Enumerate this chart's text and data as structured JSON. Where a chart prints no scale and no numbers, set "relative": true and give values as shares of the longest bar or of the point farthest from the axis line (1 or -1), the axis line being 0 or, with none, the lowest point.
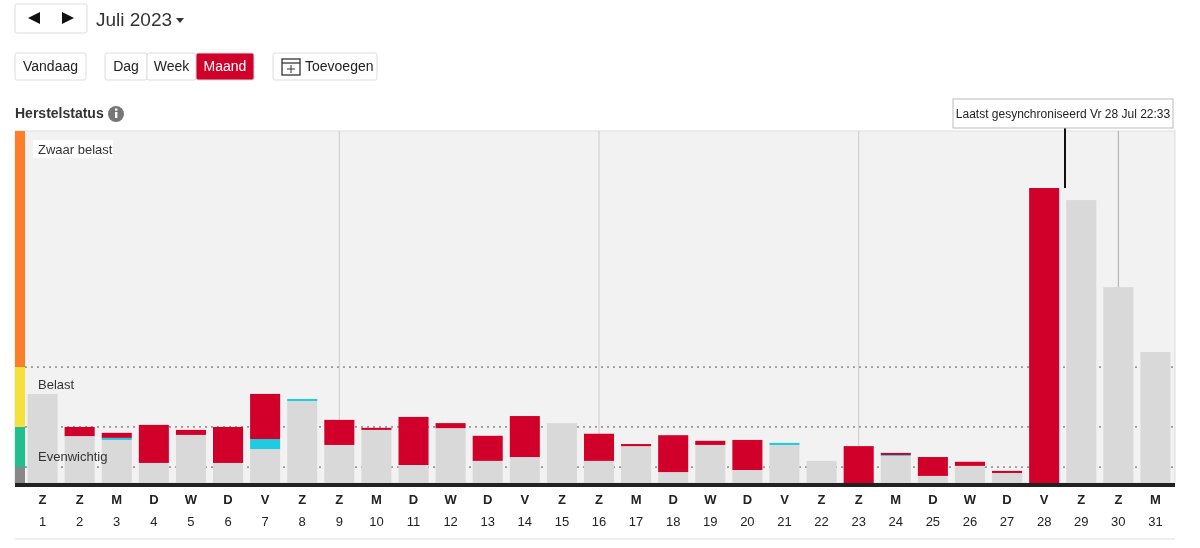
{
  "chart_data": {
    "type": "bar",
    "title": "Herstelstatus",
    "subtitle": "Juli 2023",
    "relative": true,
    "stacked": true,
    "categories": [
      "Z\n1",
      "Z\n2",
      "M\n3",
      "D\n4",
      "W\n5",
      "D\n6",
      "V\n7",
      "Z\n8",
      "Z\n9",
      "M\n10",
      "D\n11",
      "W\n12",
      "D\n13",
      "V\n14",
      "Z\n15",
      "Z\n16",
      "M\n17",
      "D\n18",
      "W\n19",
      "D\n20",
      "V\n21",
      "Z\n22",
      "Z\n23",
      "M\n24",
      "D\n25",
      "W\n26",
      "D\n27",
      "V\n28",
      "Z\n29",
      "Z\n30",
      "M\n31"
    ],
    "series": [
      {
        "color": "#d9d9d9",
        "values": [
          0.302,
          0.159,
          0.146,
          0.068,
          0.163,
          0.068,
          0.115,
          0.278,
          0.129,
          0.18,
          0.061,
          0.186,
          0.075,
          0.088,
          0.203,
          0.075,
          0.125,
          0.037,
          0.129,
          0.044,
          0.129,
          0.075,
          0,
          0.092,
          0.024,
          0.058,
          0.034,
          0,
          0.959,
          0.664,
          0.444
        ]
      },
      {
        "color": "#1ecbe1",
        "values": [
          0,
          0,
          0.007,
          0,
          0,
          0,
          0.034,
          0.007,
          0,
          0,
          0,
          0,
          0,
          0,
          0,
          0,
          0,
          0,
          0,
          0,
          0.007,
          0,
          0,
          0.003,
          0,
          0,
          0,
          0,
          0,
          0,
          0
        ]
      },
      {
        "color": "#d0002a",
        "values": [
          0,
          0.031,
          0.017,
          0.129,
          0.017,
          0.122,
          0.153,
          0,
          0.085,
          0.007,
          0.163,
          0.017,
          0.085,
          0.139,
          0,
          0.092,
          0.007,
          0.125,
          0.014,
          0.102,
          0,
          0,
          0.125,
          0.007,
          0.064,
          0.014,
          0.007,
          1,
          0,
          0,
          0
        ]
      }
    ],
    "ref_lines": [
      {
        "axis": "y",
        "value": 0.054,
        "line_style": "dotted",
        "color": "#555555"
      },
      {
        "axis": "y",
        "value": 0.19,
        "line_style": "dotted",
        "color": "#555555"
      },
      {
        "axis": "y",
        "value": 0.393,
        "line_style": "dotted",
        "color": "#555555"
      },
      {
        "axis": "x",
        "value": "Z\n9",
        "line_style": "solid",
        "color": "#cccccc"
      },
      {
        "axis": "x",
        "value": "Z\n16",
        "line_style": "solid",
        "color": "#cccccc"
      },
      {
        "axis": "x",
        "value": "Z\n23",
        "line_style": "solid",
        "color": "#cccccc"
      },
      {
        "axis": "x",
        "value": "Z\n30",
        "line_style": "solid",
        "color": "#aaaaaa"
      }
    ],
    "annotations": [
      "Laatst gesynchroniseerd Vr 28 Jul 22:33",
      "Vandaag",
      "Dag",
      "Week",
      "Maand",
      "Toevoegen",
      "Zwaar belast",
      "Belast",
      "Evenwichtig"
    ]
  }
}
